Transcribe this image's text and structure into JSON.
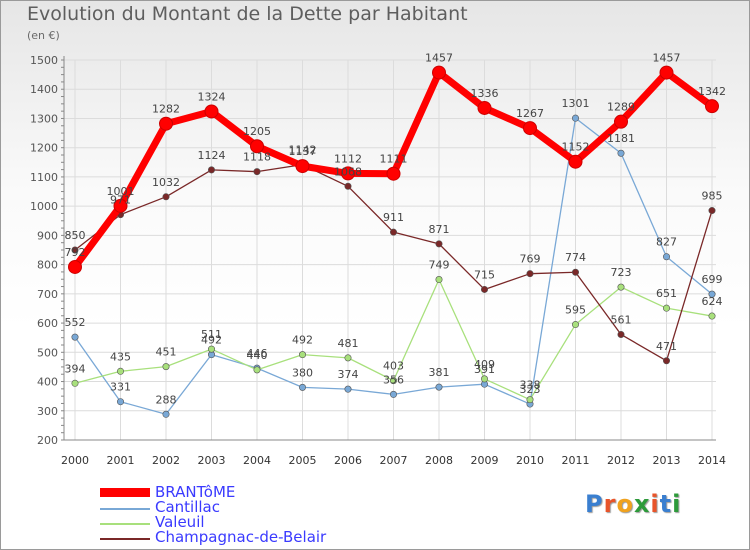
{
  "chart_data": {
    "type": "line",
    "title": "Evolution du Montant de la Dette par Habitant",
    "unit_label": "(en €)",
    "x": [
      "2000",
      "2001",
      "2002",
      "2003",
      "2004",
      "2005",
      "2006",
      "2007",
      "2008",
      "2009",
      "2010",
      "2011",
      "2012",
      "2013",
      "2014"
    ],
    "ylim": [
      200,
      1500
    ],
    "yticks": [
      200,
      300,
      400,
      500,
      600,
      700,
      800,
      900,
      1000,
      1100,
      1200,
      1300,
      1400,
      1500
    ],
    "grid": true,
    "series": [
      {
        "name": "BRANTôME",
        "color": "#ff0000",
        "values": [
          792,
          1001,
          1282,
          1324,
          1205,
          1137,
          1112,
          1111,
          1457,
          1336,
          1267,
          1152,
          1289,
          1457,
          1342
        ]
      },
      {
        "name": "Cantillac",
        "color": "#79a8d6",
        "values": [
          552,
          331,
          288,
          492,
          446,
          380,
          374,
          356,
          381,
          391,
          323,
          1301,
          1181,
          827,
          699
        ]
      },
      {
        "name": "Valeuil",
        "color": "#a8e07c",
        "values": [
          394,
          435,
          451,
          511,
          440,
          492,
          481,
          403,
          749,
          409,
          338,
          595,
          723,
          651,
          624
        ]
      },
      {
        "name": "Champagnac-de-Belair",
        "color": "#7a2828",
        "values": [
          850,
          971,
          1032,
          1124,
          1118,
          1142,
          1068,
          911,
          871,
          715,
          769,
          774,
          561,
          471,
          985
        ]
      }
    ]
  },
  "legend": {
    "items": [
      "BRANTôME",
      "Cantillac",
      "Valeuil",
      "Champagnac-de-Belair"
    ]
  },
  "logo": {
    "text": "Proxiti"
  }
}
